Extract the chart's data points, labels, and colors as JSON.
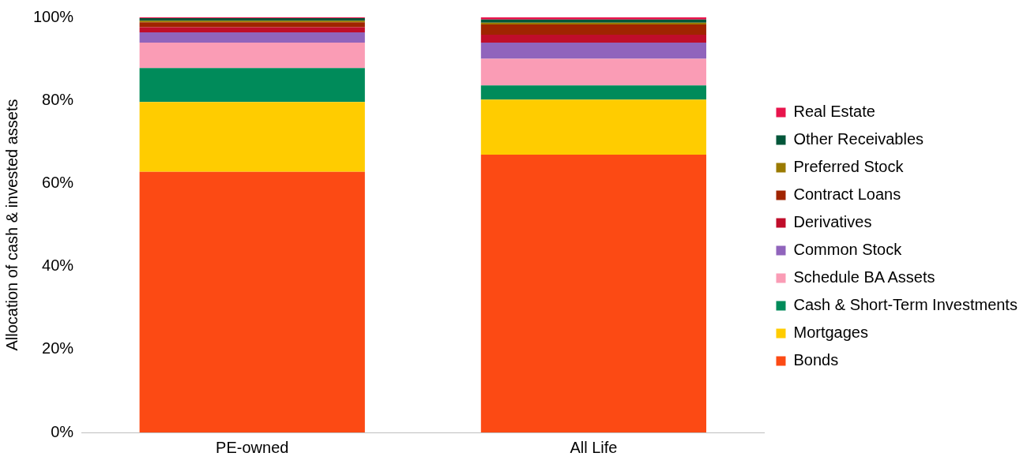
{
  "chart_data": {
    "type": "bar",
    "stacked": true,
    "ylabel": "Allocation of cash & invested assets",
    "categories": [
      "PE-owned",
      "All Life"
    ],
    "ylim": [
      0,
      100
    ],
    "yticks": [
      {
        "value": 0,
        "label": "0%"
      },
      {
        "value": 20,
        "label": "20%"
      },
      {
        "value": 40,
        "label": "40%"
      },
      {
        "value": 60,
        "label": "60%"
      },
      {
        "value": 80,
        "label": "80%"
      },
      {
        "value": 100,
        "label": "100%"
      }
    ],
    "grid": false,
    "legend": "right",
    "series": [
      {
        "name": "Bonds",
        "color": "#fc4a14",
        "values": [
          62.8,
          66.9
        ]
      },
      {
        "name": "Mortgages",
        "color": "#ffcc00",
        "values": [
          16.8,
          13.3
        ]
      },
      {
        "name": "Cash & Short-Term Investments",
        "color": "#008b5a",
        "values": [
          8.2,
          3.4
        ]
      },
      {
        "name": "Schedule BA Assets",
        "color": "#fa9cb5",
        "values": [
          6.1,
          6.4
        ]
      },
      {
        "name": "Common Stock",
        "color": "#9064bc",
        "values": [
          2.5,
          3.9
        ]
      },
      {
        "name": "Derivatives",
        "color": "#c00d2a",
        "values": [
          1.2,
          1.9
        ]
      },
      {
        "name": "Contract Loans",
        "color": "#a02400",
        "values": [
          1.2,
          2.5
        ]
      },
      {
        "name": "Preferred Stock",
        "color": "#9a7a00",
        "values": [
          0.4,
          0.4
        ]
      },
      {
        "name": "Other Receivables",
        "color": "#02563a",
        "values": [
          0.6,
          0.8
        ]
      },
      {
        "name": "Real Estate",
        "color": "#e8144c",
        "values": [
          0.2,
          0.5
        ]
      }
    ]
  }
}
